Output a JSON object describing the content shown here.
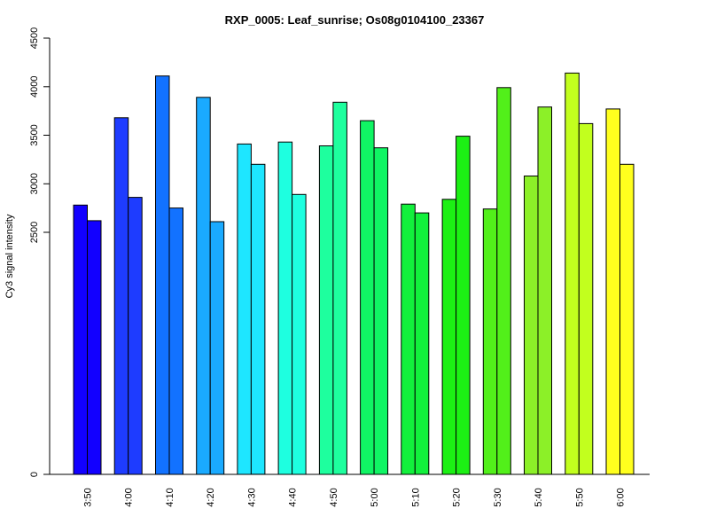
{
  "chart_data": {
    "type": "bar",
    "title": "RXP_0005: Leaf_sunrise; Os08g0104100_23367",
    "xlabel": "",
    "ylabel": "Cy3 signal intensity",
    "ylim": [
      0,
      4500
    ],
    "y_axis_break": "axis jumps from 0 to 2500",
    "yticks": [
      0,
      2500,
      3000,
      3500,
      4000,
      4500
    ],
    "grid": false,
    "categories": [
      "3:50",
      "4:00",
      "4:10",
      "4:20",
      "4:30",
      "4:40",
      "4:50",
      "5:00",
      "5:10",
      "5:20",
      "5:30",
      "5:40",
      "5:50",
      "6:00"
    ],
    "series": [
      {
        "values": [
          2780,
          3680,
          4110,
          3890,
          3410,
          3430,
          3390,
          3650,
          2790,
          2840,
          2740,
          3080,
          4140,
          3770
        ]
      },
      {
        "values": [
          2620,
          2860,
          2750,
          2610,
          3200,
          2890,
          3840,
          3370,
          2700,
          3490,
          3990,
          3790,
          3620,
          3200
        ]
      }
    ],
    "colors": [
      "#1200ff",
      "#1e3cff",
      "#1272ff",
      "#1aaaff",
      "#1ee6ff",
      "#1effe0",
      "#1eff9e",
      "#10f564",
      "#12f03c",
      "#1cf014",
      "#52f01a",
      "#8cf028",
      "#c2ff1e",
      "#ffff1e"
    ]
  }
}
